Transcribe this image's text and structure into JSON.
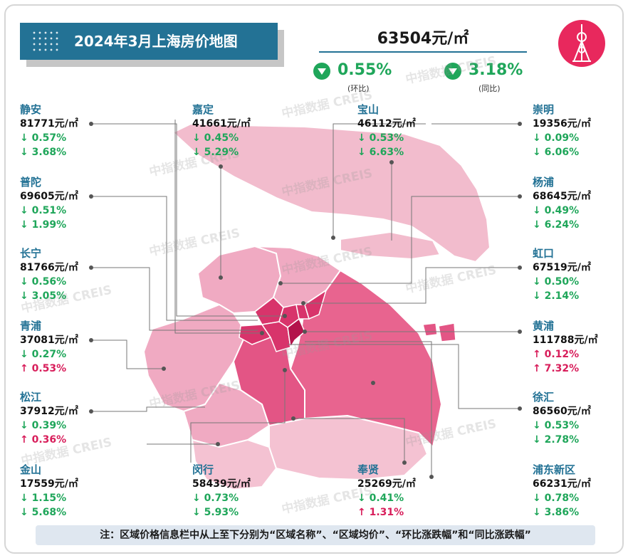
{
  "title": "2024年3月上海房价地图",
  "summary": {
    "avg_price": "63504元/㎡",
    "mom_value": "0.55%",
    "mom_label": "(环比)",
    "yoy_value": "3.18%",
    "yoy_label": "(同比)"
  },
  "watermark": "中指数据 CREIS",
  "unit": "元/㎡",
  "districts": {
    "jingan": {
      "name": "静安",
      "price": "81771",
      "mom": "↓ 0.57%",
      "yoy": "↓ 3.68%"
    },
    "jiading": {
      "name": "嘉定",
      "price": "41661",
      "mom": "↓ 0.45%",
      "yoy": "↓ 5.29%"
    },
    "baoshan": {
      "name": "宝山",
      "price": "46112",
      "mom": "↓ 0.53%",
      "yoy": "↓ 6.63%"
    },
    "chongming": {
      "name": "崇明",
      "price": "19356",
      "mom": "↓ 0.09%",
      "yoy": "↓ 6.06%"
    },
    "putuo": {
      "name": "普陀",
      "price": "69605",
      "mom": "↓ 0.51%",
      "yoy": "↓ 1.99%"
    },
    "yangpu": {
      "name": "杨浦",
      "price": "68645",
      "mom": "↓ 0.49%",
      "yoy": "↓ 6.24%"
    },
    "changning": {
      "name": "长宁",
      "price": "81766",
      "mom": "↓ 0.56%",
      "yoy": "↓ 3.05%"
    },
    "hongkou": {
      "name": "虹口",
      "price": "67519",
      "mom": "↓ 0.50%",
      "yoy": "↓ 2.14%"
    },
    "qingpu": {
      "name": "青浦",
      "price": "37081",
      "mom": "↓ 0.27%",
      "yoy": "↑ 0.53%"
    },
    "huangpu": {
      "name": "黄浦",
      "price": "111788",
      "mom": "↑ 0.12%",
      "yoy": "↑ 7.32%"
    },
    "songjiang": {
      "name": "松江",
      "price": "37912",
      "mom": "↓ 0.39%",
      "yoy": "↑ 0.36%"
    },
    "xuhui": {
      "name": "徐汇",
      "price": "86560",
      "mom": "↓ 0.53%",
      "yoy": "↓ 2.78%"
    },
    "jinshan": {
      "name": "金山",
      "price": "17559",
      "mom": "↓ 1.15%",
      "yoy": "↓ 5.68%"
    },
    "minhang": {
      "name": "闵行",
      "price": "58439",
      "mom": "↓ 0.73%",
      "yoy": "↓ 5.93%"
    },
    "fengxian": {
      "name": "奉贤",
      "price": "25269",
      "mom": "↓ 0.41%",
      "yoy": "↑ 1.31%"
    },
    "pudong": {
      "name": "浦东新区",
      "price": "66231",
      "mom": "↓ 0.78%",
      "yoy": "↓ 3.86%"
    }
  },
  "note": "注：区域价格信息栏中从上至下分别为“区域名称”、“区域均价”、“环比涨跌幅”和“同比涨跌幅”",
  "colors": {
    "accent": "#237295",
    "down": "#1fa65a",
    "up": "#d81e5b",
    "logo": "#e8285d"
  },
  "icons": [
    "oriental-pearl-tower-icon",
    "down-triangle-icon"
  ]
}
